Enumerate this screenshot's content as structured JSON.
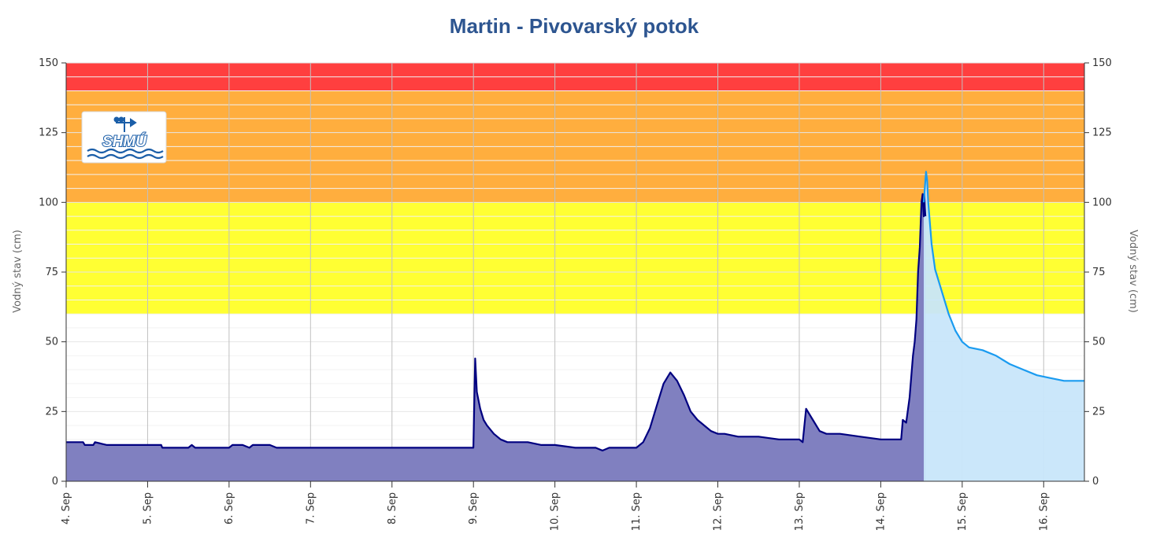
{
  "chart_data": {
    "type": "area",
    "title": "Martin - Pivovarský potok",
    "ylabel_left": "Vodný stav (cm)",
    "ylabel_right": "Vodný stav (cm)",
    "ylim": [
      0,
      150
    ],
    "yticks": [
      0,
      25,
      50,
      75,
      100,
      125,
      150
    ],
    "xlim": [
      "2023-09-04T00:00",
      "2023-09-16T12:00"
    ],
    "xtick_labels": [
      "4. Sep",
      "5. Sep",
      "6. Sep",
      "7. Sep",
      "8. Sep",
      "9. Sep",
      "10. Sep",
      "11. Sep",
      "12. Sep",
      "13. Sep",
      "14. Sep",
      "15. Sep",
      "16. Sep"
    ],
    "grid": true,
    "legend": "none",
    "bands": [
      {
        "from": 60,
        "to": 100,
        "color": "#ffff33"
      },
      {
        "from": 100,
        "to": 140,
        "color": "#ffae3e"
      },
      {
        "from": 140,
        "to": 150,
        "color": "#ff3f3f"
      }
    ],
    "colors": {
      "measured_line": "#000080",
      "measured_fill": "#8080c0",
      "forecast_line": "#1a9bf0",
      "forecast_fill": "#c8e6fa",
      "title": "#2d5590"
    },
    "logo": {
      "text": "SHMÚ"
    },
    "series": [
      {
        "kind": "measured",
        "x": [
          "2023-09-04T00:00",
          "2023-09-04T05:00",
          "2023-09-04T05:30",
          "2023-09-04T08:00",
          "2023-09-04T08:30",
          "2023-09-04T12:00",
          "2023-09-04T18:00",
          "2023-09-05T00:00",
          "2023-09-05T04:00",
          "2023-09-05T04:20",
          "2023-09-05T12:00",
          "2023-09-05T13:00",
          "2023-09-05T14:00",
          "2023-09-05T16:00",
          "2023-09-06T00:00",
          "2023-09-06T01:00",
          "2023-09-06T04:00",
          "2023-09-06T06:00",
          "2023-09-06T07:00",
          "2023-09-06T12:00",
          "2023-09-06T14:00",
          "2023-09-06T15:00",
          "2023-09-07T00:00",
          "2023-09-08T00:00",
          "2023-09-08T23:59",
          "2023-09-09T00:30",
          "2023-09-09T01:00",
          "2023-09-09T02:00",
          "2023-09-09T03:00",
          "2023-09-09T04:00",
          "2023-09-09T06:00",
          "2023-09-09T08:00",
          "2023-09-09T10:00",
          "2023-09-09T12:00",
          "2023-09-09T14:00",
          "2023-09-09T16:00",
          "2023-09-09T20:00",
          "2023-09-10T00:00",
          "2023-09-10T06:00",
          "2023-09-10T12:00",
          "2023-09-10T14:00",
          "2023-09-10T16:00",
          "2023-09-11T00:00",
          "2023-09-11T02:00",
          "2023-09-11T04:00",
          "2023-09-11T06:00",
          "2023-09-11T08:00",
          "2023-09-11T10:00",
          "2023-09-11T12:00",
          "2023-09-11T14:00",
          "2023-09-11T16:00",
          "2023-09-11T18:00",
          "2023-09-11T20:00",
          "2023-09-11T22:00",
          "2023-09-12T00:00",
          "2023-09-12T02:00",
          "2023-09-12T06:00",
          "2023-09-12T12:00",
          "2023-09-12T18:00",
          "2023-09-13T00:00",
          "2023-09-13T01:00",
          "2023-09-13T02:00",
          "2023-09-13T04:00",
          "2023-09-13T06:00",
          "2023-09-13T08:00",
          "2023-09-13T12:00",
          "2023-09-13T18:00",
          "2023-09-14T00:00",
          "2023-09-14T06:00",
          "2023-09-14T06:30",
          "2023-09-14T07:30",
          "2023-09-14T08:30",
          "2023-09-14T09:30",
          "2023-09-14T10:00",
          "2023-09-14T10:30",
          "2023-09-14T11:00",
          "2023-09-14T11:30",
          "2023-09-14T12:00",
          "2023-09-14T12:20",
          "2023-09-14T12:30",
          "2023-09-14T12:40",
          "2023-09-14T12:50",
          "2023-09-14T13:00",
          "2023-09-14T13:10"
        ],
        "y": [
          14,
          14,
          13,
          13,
          14,
          13,
          13,
          13,
          13,
          12,
          12,
          13,
          12,
          12,
          12,
          13,
          13,
          12,
          13,
          13,
          12,
          12,
          12,
          12,
          12,
          44,
          32,
          26,
          22,
          20,
          17,
          15,
          14,
          14,
          14,
          14,
          13,
          13,
          12,
          12,
          11,
          12,
          12,
          14,
          19,
          27,
          35,
          39,
          36,
          31,
          25,
          22,
          20,
          18,
          17,
          17,
          16,
          16,
          15,
          15,
          14,
          26,
          22,
          18,
          17,
          17,
          16,
          15,
          15,
          22,
          21,
          30,
          45,
          50,
          58,
          75,
          84,
          100,
          103,
          98,
          95,
          103,
          98,
          95
        ]
      },
      {
        "kind": "forecast",
        "x": [
          "2023-09-14T12:40",
          "2023-09-14T13:10",
          "2023-09-14T13:20",
          "2023-09-14T13:40",
          "2023-09-14T14:00",
          "2023-09-14T15:00",
          "2023-09-14T16:00",
          "2023-09-14T18:00",
          "2023-09-14T20:00",
          "2023-09-14T22:00",
          "2023-09-15T00:00",
          "2023-09-15T02:00",
          "2023-09-15T06:00",
          "2023-09-15T10:00",
          "2023-09-15T14:00",
          "2023-09-15T18:00",
          "2023-09-15T22:00",
          "2023-09-16T02:00",
          "2023-09-16T06:00",
          "2023-09-16T12:00"
        ],
        "y": [
          100,
          108,
          111,
          108,
          100,
          85,
          76,
          68,
          60,
          54,
          50,
          48,
          47,
          45,
          42,
          40,
          38,
          37,
          36,
          36
        ]
      }
    ]
  }
}
